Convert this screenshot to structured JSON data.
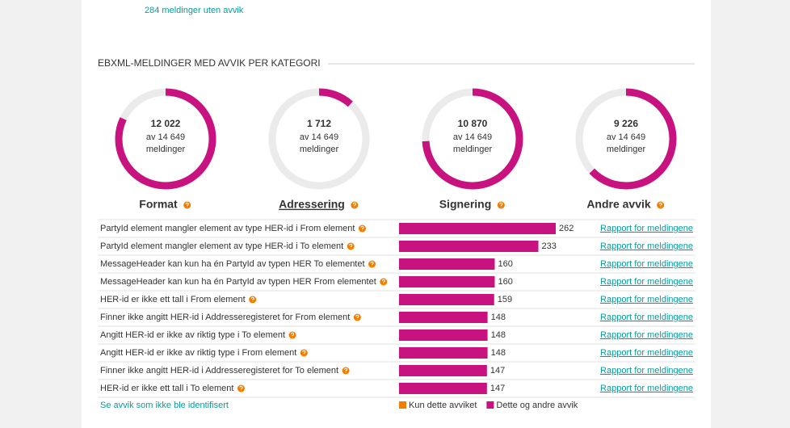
{
  "summary": "284 meldinger uten avvik",
  "section_title": "EBXML-MELDINGER MED AVVIK PER KATEGORI",
  "total": {
    "value": 14649,
    "label": "14 649"
  },
  "of": "av",
  "unit": "meldinger",
  "color": "#c8127f",
  "track_color": "#ebebeb",
  "donuts": [
    {
      "name": "Format",
      "value": {
        "value": 12022,
        "label": "12 022"
      }
    },
    {
      "name": "Adressering",
      "value": {
        "value": 1712,
        "label": "1 712"
      }
    },
    {
      "name": "Signering",
      "value": {
        "value": 10870,
        "label": "10 870"
      }
    },
    {
      "name": "Andre avvik",
      "value": {
        "value": 9226,
        "label": "9 226"
      }
    }
  ],
  "rows": [
    {
      "label": "PartyId element mangler element av type HER-id i From element",
      "value": 262,
      "link": "Rapport for meldingene"
    },
    {
      "label": "PartyId element mangler element av type HER-id i To element",
      "value": 233,
      "link": "Rapport for meldingene"
    },
    {
      "label": "MessageHeader kan kun ha én PartyId av typen HER To elementet",
      "value": 160,
      "link": "Rapport for meldingene"
    },
    {
      "label": "MessageHeader kan kun ha én PartyId av typen HER From elementet",
      "value": 160,
      "link": "Rapport for meldingene"
    },
    {
      "label": "HER-id er ikke ett tall i From element",
      "value": 159,
      "link": "Rapport for meldingene"
    },
    {
      "label": "Finner ikke angitt HER-id i Addresseregisteret for From element",
      "value": 148,
      "link": "Rapport for meldingene"
    },
    {
      "label": "Angitt HER-id er ikke av riktig type i To element",
      "value": 148,
      "link": "Rapport for meldingene"
    },
    {
      "label": "Angitt HER-id er ikke av riktig type i From element",
      "value": 148,
      "link": "Rapport for meldingene"
    },
    {
      "label": "Finner ikke angitt HER-id i Addresseregisteret for To element",
      "value": 147,
      "link": "Rapport for meldingene"
    },
    {
      "label": "HER-id er ikke ett tall i To element",
      "value": 147,
      "link": "Rapport for meldingene"
    }
  ],
  "footer_link": "Se avvik som ikke ble identifisert",
  "legend": [
    {
      "name": "Kun dette avviket",
      "color": "#f07d00"
    },
    {
      "name": "Dette og andre avvik",
      "color": "#c8127f"
    }
  ]
}
